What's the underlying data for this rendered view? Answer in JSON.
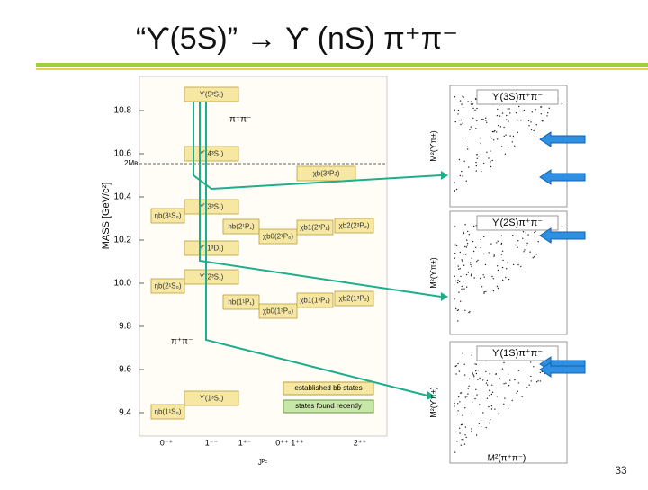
{
  "title": "“ϒ(5S)” → ϒ (nS) π⁺π⁻",
  "level_diagram": {
    "axis_label": "MASS  [GeV/c²]",
    "yticks": [
      "10.8",
      "10.6",
      "10.4",
      "10.2",
      "10.0",
      "9.8",
      "9.6",
      "9.4"
    ],
    "threshold": "2Mʙ",
    "x_labels": [
      "0⁻⁺",
      "1⁻⁻",
      "1⁺⁻",
      "0⁺⁺ 1⁺⁺",
      "2⁺⁺"
    ],
    "x_axis_label": "Jᴾᶜ",
    "levels": [
      "ϒ(5³S₁)",
      "ϒ(4³S₁)",
      "χb(3³Pᴊ)",
      "ϒ(3³S₁)",
      "ηb(3¹S₀)",
      "hb(2¹P₁)",
      "χb0(2³P₀)",
      "χb1(2³P₁)",
      "χb2(2³P₂)",
      "ϒ(1³D₁)",
      "ϒ(2³S₁)",
      "ηb(2¹S₀)",
      "hb(1¹P₁)",
      "χb0(1³P₀)",
      "χb1(1³P₁)",
      "χb2(1³P₂)",
      "ϒ(1³S₁)",
      "ηb(1¹S₀)"
    ],
    "legend": [
      "established bb̄ states",
      "states found recently"
    ],
    "transition_labels": [
      "π⁺π⁻",
      "π⁺π⁻"
    ]
  },
  "panels": [
    {
      "label": "ϒ(3S)π⁺π⁻",
      "y_label": "M²(ϒπ±)"
    },
    {
      "label": "ϒ(2S)π⁺π⁻",
      "y_label": "M²(ϒπ±)"
    },
    {
      "label": "ϒ(1S)π⁺π⁻",
      "y_label": "M²(ϒπ±)"
    }
  ],
  "x_label": "M²(π⁺π⁻)",
  "page_number": "33"
}
